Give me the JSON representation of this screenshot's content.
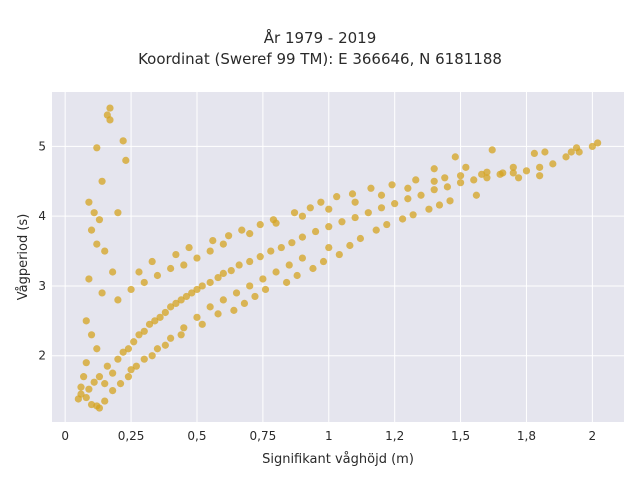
{
  "chart_data": {
    "type": "scatter",
    "title": "År 1979 - 2019",
    "subtitle": "Koordinat (Sweref 99 TM): E 366646, N 6181188",
    "xlabel": "Signifikant våghöjd (m)",
    "ylabel": "Vågperiod (s)",
    "xlim": [
      -0.05,
      2.12
    ],
    "ylim": [
      1.05,
      5.78
    ],
    "x_ticks": [
      0,
      0.25,
      0.5,
      0.75,
      1,
      1.25,
      1.5,
      1.75,
      2
    ],
    "x_tick_labels": [
      "0",
      "0,25",
      "0,5",
      "0,75",
      "1",
      "1,2",
      "1,5",
      "1,8",
      "2"
    ],
    "y_ticks": [
      2,
      3,
      4,
      5
    ],
    "y_tick_labels": [
      "2",
      "3",
      "4",
      "5"
    ],
    "grid": true,
    "marker_color": "#D4A320",
    "background_color": "#E5E5EE",
    "series": [
      {
        "values": [
          [
            0.05,
            1.38
          ],
          [
            0.06,
            1.45
          ],
          [
            0.08,
            1.4
          ],
          [
            0.09,
            1.52
          ],
          [
            0.1,
            1.3
          ],
          [
            0.11,
            1.62
          ],
          [
            0.12,
            1.28
          ],
          [
            0.13,
            1.7
          ],
          [
            0.15,
            1.6
          ],
          [
            0.16,
            1.85
          ],
          [
            0.18,
            1.75
          ],
          [
            0.2,
            1.95
          ],
          [
            0.22,
            2.05
          ],
          [
            0.24,
            2.1
          ],
          [
            0.26,
            2.2
          ],
          [
            0.28,
            2.3
          ],
          [
            0.3,
            2.35
          ],
          [
            0.32,
            2.45
          ],
          [
            0.34,
            2.5
          ],
          [
            0.36,
            2.55
          ],
          [
            0.38,
            2.62
          ],
          [
            0.4,
            2.7
          ],
          [
            0.42,
            2.75
          ],
          [
            0.44,
            2.8
          ],
          [
            0.46,
            2.85
          ],
          [
            0.48,
            2.9
          ],
          [
            0.5,
            2.95
          ],
          [
            0.52,
            3.0
          ],
          [
            0.55,
            3.05
          ],
          [
            0.58,
            3.12
          ],
          [
            0.6,
            3.18
          ],
          [
            0.63,
            3.22
          ],
          [
            0.66,
            3.3
          ],
          [
            0.7,
            3.35
          ],
          [
            0.74,
            3.42
          ],
          [
            0.78,
            3.5
          ],
          [
            0.82,
            3.55
          ],
          [
            0.86,
            3.62
          ],
          [
            0.9,
            3.7
          ],
          [
            0.95,
            3.78
          ],
          [
            1.0,
            3.85
          ],
          [
            1.05,
            3.92
          ],
          [
            1.1,
            3.98
          ],
          [
            1.15,
            4.05
          ],
          [
            1.2,
            4.12
          ],
          [
            1.25,
            4.18
          ],
          [
            1.3,
            4.25
          ],
          [
            1.35,
            4.3
          ],
          [
            1.4,
            4.38
          ],
          [
            1.45,
            4.42
          ],
          [
            1.5,
            4.48
          ],
          [
            1.55,
            4.52
          ],
          [
            1.6,
            4.55
          ],
          [
            1.65,
            4.6
          ],
          [
            1.7,
            4.62
          ],
          [
            1.75,
            4.65
          ],
          [
            1.8,
            4.7
          ],
          [
            1.85,
            4.75
          ],
          [
            1.9,
            4.85
          ],
          [
            1.95,
            4.92
          ],
          [
            2.0,
            5.0
          ],
          [
            2.02,
            5.05
          ],
          [
            0.17,
            5.55
          ],
          [
            0.16,
            5.45
          ],
          [
            0.17,
            5.38
          ],
          [
            0.22,
            5.08
          ],
          [
            0.12,
            4.98
          ],
          [
            0.23,
            4.8
          ],
          [
            0.14,
            4.5
          ],
          [
            0.2,
            4.05
          ],
          [
            0.1,
            3.8
          ],
          [
            0.12,
            3.6
          ],
          [
            0.18,
            3.2
          ],
          [
            0.08,
            1.9
          ],
          [
            0.07,
            1.7
          ],
          [
            0.25,
            1.8
          ],
          [
            0.3,
            1.95
          ],
          [
            0.35,
            2.1
          ],
          [
            0.4,
            2.25
          ],
          [
            0.45,
            2.4
          ],
          [
            0.5,
            2.55
          ],
          [
            0.55,
            2.7
          ],
          [
            0.6,
            2.8
          ],
          [
            0.65,
            2.9
          ],
          [
            0.7,
            3.0
          ],
          [
            0.75,
            3.1
          ],
          [
            0.8,
            3.2
          ],
          [
            0.85,
            3.3
          ],
          [
            0.9,
            3.4
          ],
          [
            1.0,
            3.55
          ],
          [
            0.2,
            2.8
          ],
          [
            0.25,
            2.95
          ],
          [
            0.3,
            3.05
          ],
          [
            0.35,
            3.15
          ],
          [
            0.4,
            3.25
          ],
          [
            0.45,
            3.3
          ],
          [
            0.5,
            3.4
          ],
          [
            0.55,
            3.5
          ],
          [
            0.6,
            3.6
          ],
          [
            0.7,
            3.75
          ],
          [
            0.8,
            3.9
          ],
          [
            0.9,
            4.0
          ],
          [
            1.0,
            4.1
          ],
          [
            1.1,
            4.2
          ],
          [
            1.2,
            4.3
          ],
          [
            1.3,
            4.4
          ],
          [
            1.4,
            4.5
          ],
          [
            1.5,
            4.58
          ],
          [
            1.6,
            4.63
          ],
          [
            1.7,
            4.7
          ],
          [
            1.78,
            4.9
          ],
          [
            1.82,
            4.92
          ],
          [
            1.92,
            4.92
          ],
          [
            1.94,
            4.98
          ],
          [
            1.8,
            4.58
          ],
          [
            1.72,
            4.55
          ],
          [
            1.62,
            4.95
          ],
          [
            1.4,
            4.68
          ],
          [
            1.48,
            4.85
          ],
          [
            1.52,
            4.7
          ],
          [
            0.09,
            4.2
          ],
          [
            0.11,
            4.05
          ],
          [
            0.13,
            3.95
          ],
          [
            0.15,
            3.5
          ],
          [
            0.09,
            3.1
          ],
          [
            0.14,
            2.9
          ],
          [
            0.08,
            2.5
          ],
          [
            0.1,
            2.3
          ],
          [
            0.12,
            2.1
          ],
          [
            0.06,
            1.55
          ],
          [
            0.13,
            1.25
          ],
          [
            0.15,
            1.35
          ],
          [
            0.18,
            1.5
          ],
          [
            0.21,
            1.6
          ],
          [
            0.24,
            1.7
          ],
          [
            0.27,
            1.85
          ],
          [
            0.33,
            2.0
          ],
          [
            0.38,
            2.15
          ],
          [
            0.44,
            2.3
          ],
          [
            0.52,
            2.45
          ],
          [
            0.58,
            2.6
          ],
          [
            0.64,
            2.65
          ],
          [
            0.68,
            2.75
          ],
          [
            0.72,
            2.85
          ],
          [
            0.76,
            2.95
          ],
          [
            0.84,
            3.05
          ],
          [
            0.88,
            3.15
          ],
          [
            0.94,
            3.25
          ],
          [
            0.98,
            3.35
          ],
          [
            1.04,
            3.45
          ],
          [
            1.08,
            3.58
          ],
          [
            1.12,
            3.68
          ],
          [
            1.18,
            3.8
          ],
          [
            1.22,
            3.88
          ],
          [
            1.28,
            3.96
          ],
          [
            1.32,
            4.02
          ],
          [
            1.38,
            4.1
          ],
          [
            1.42,
            4.16
          ],
          [
            1.46,
            4.22
          ],
          [
            1.56,
            4.3
          ],
          [
            0.28,
            3.2
          ],
          [
            0.33,
            3.35
          ],
          [
            0.42,
            3.45
          ],
          [
            0.47,
            3.55
          ],
          [
            0.56,
            3.65
          ],
          [
            0.62,
            3.72
          ],
          [
            0.67,
            3.8
          ],
          [
            0.74,
            3.88
          ],
          [
            0.79,
            3.95
          ],
          [
            0.87,
            4.05
          ],
          [
            0.93,
            4.12
          ],
          [
            0.97,
            4.2
          ],
          [
            1.03,
            4.28
          ],
          [
            1.09,
            4.32
          ],
          [
            1.16,
            4.4
          ],
          [
            1.24,
            4.45
          ],
          [
            1.33,
            4.52
          ],
          [
            1.44,
            4.55
          ],
          [
            1.58,
            4.6
          ],
          [
            1.66,
            4.62
          ]
        ]
      }
    ]
  }
}
